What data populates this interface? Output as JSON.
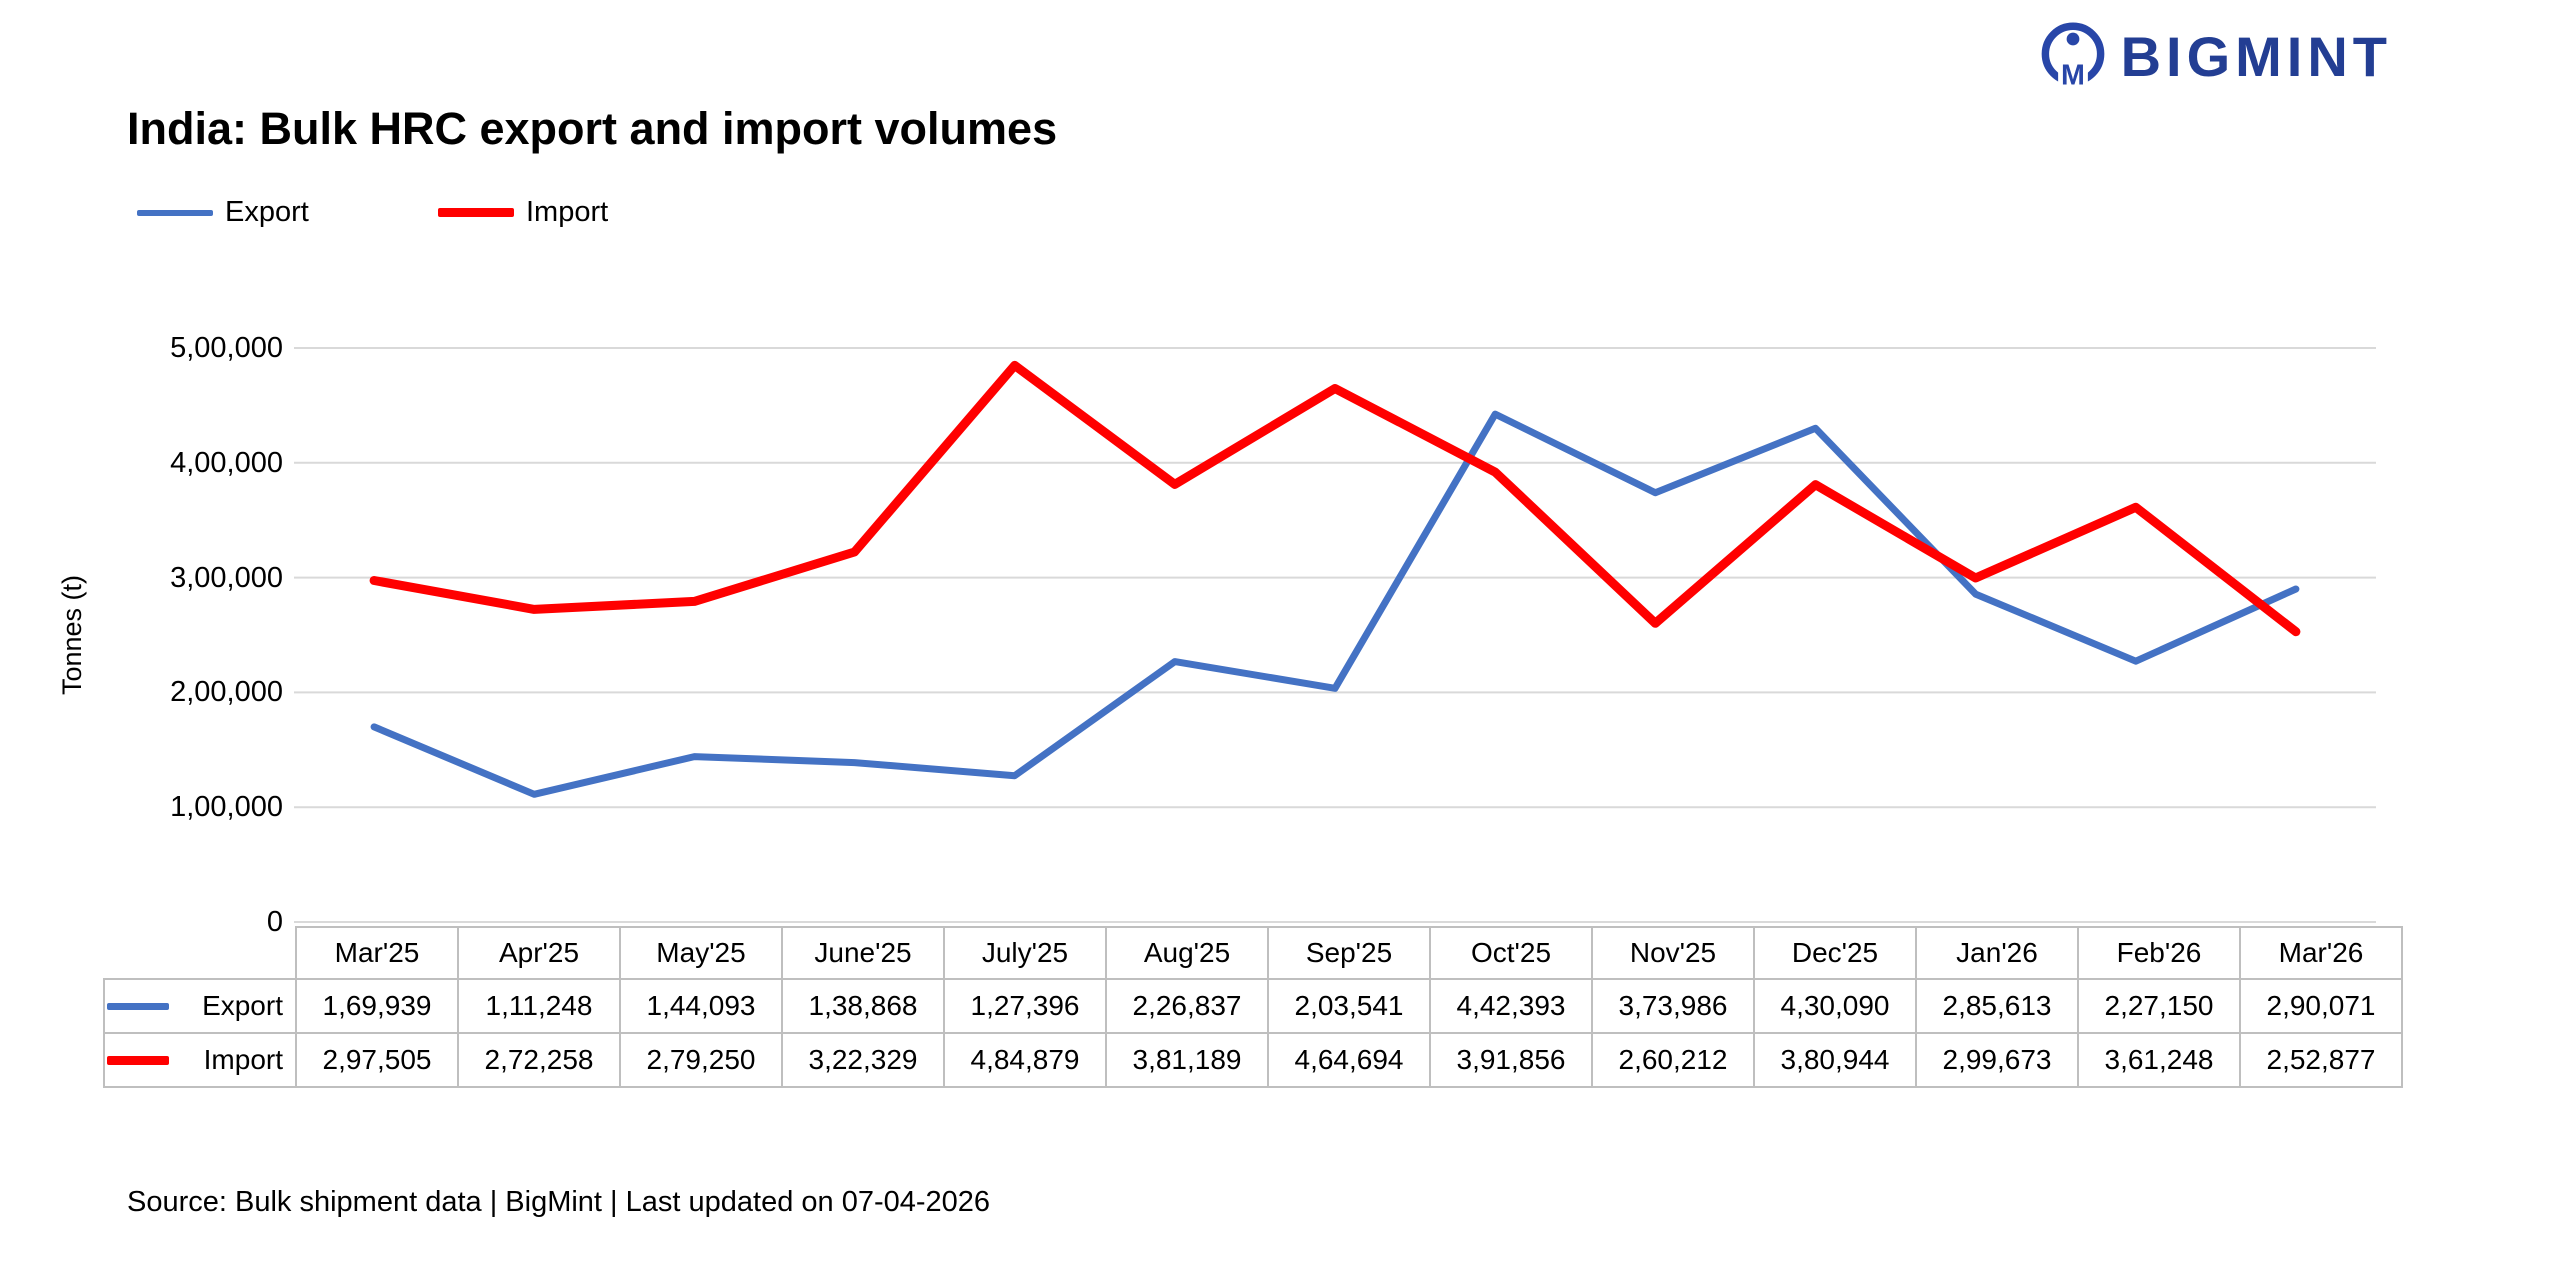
{
  "logo": {
    "brand": "BIGMINT",
    "color": "#233E93",
    "icon_color": "#2846A8"
  },
  "header": {
    "title": "India: Bulk HRC export and import volumes"
  },
  "legend": [
    {
      "label": "Export",
      "color": "#4472C4"
    },
    {
      "label": "Import",
      "color": "#FF0000"
    }
  ],
  "chart_data": {
    "type": "line",
    "title": "India: Bulk HRC export and import volumes",
    "xlabel": "",
    "ylabel": "Tonnes (t)",
    "ylim": [
      0,
      500000
    ],
    "grid": true,
    "legend_position": "top-left",
    "ytick_values": [
      0,
      100000,
      200000,
      300000,
      400000,
      500000
    ],
    "ytick_labels": [
      "0",
      "1,00,000",
      "2,00,000",
      "3,00,000",
      "4,00,000",
      "5,00,000"
    ],
    "categories": [
      "Mar'25",
      "Apr'25",
      "May'25",
      "June'25",
      "July'25",
      "Aug'25",
      "Sep'25",
      "Oct'25",
      "Nov'25",
      "Dec'25",
      "Jan'26",
      "Feb'26",
      "Mar'26"
    ],
    "series": [
      {
        "name": "Export",
        "color": "#4472C4",
        "values": [
          169939,
          111248,
          144093,
          138868,
          127396,
          226837,
          203541,
          442393,
          373986,
          430090,
          285613,
          227150,
          290071
        ],
        "labels": [
          "1,69,939",
          "1,11,248",
          "1,44,093",
          "1,38,868",
          "1,27,396",
          "2,26,837",
          "2,03,541",
          "4,42,393",
          "3,73,986",
          "4,30,090",
          "2,85,613",
          "2,27,150",
          "2,90,071"
        ]
      },
      {
        "name": "Import",
        "color": "#FF0000",
        "values": [
          297505,
          272258,
          279250,
          322329,
          484879,
          381189,
          464694,
          391856,
          260212,
          380944,
          299673,
          361248,
          252877
        ],
        "labels": [
          "2,97,505",
          "2,72,258",
          "2,79,250",
          "3,22,329",
          "4,84,879",
          "3,81,189",
          "4,64,694",
          "3,91,856",
          "2,60,212",
          "3,80,944",
          "2,99,673",
          "3,61,248",
          "2,52,877"
        ]
      }
    ]
  },
  "footer": {
    "source": "Source: Bulk shipment data | BigMint | Last updated on 07-04-2026"
  }
}
